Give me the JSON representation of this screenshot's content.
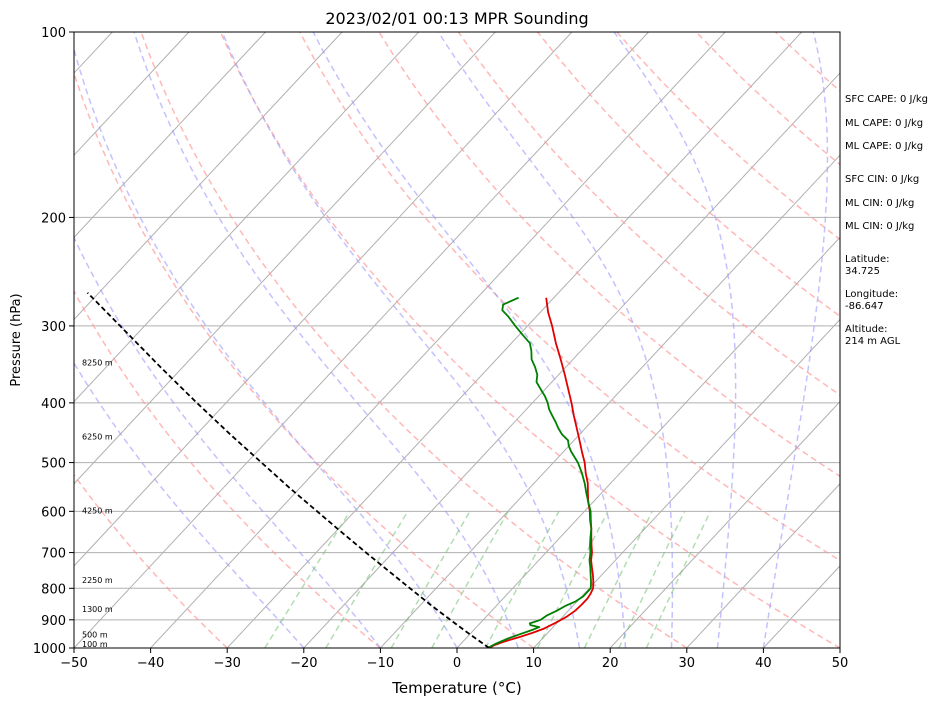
{
  "chart_data": {
    "type": "line",
    "title": "2023/02/01 00:13 MPR Sounding",
    "xlabel": "Temperature (°C)",
    "ylabel": "Pressure (hPa)",
    "xlim": [
      -50,
      50
    ],
    "ylim": [
      1000,
      100
    ],
    "y_scale": "log",
    "skew": "skew-T",
    "grid": true,
    "x_ticks": [
      -50,
      -40,
      -30,
      -20,
      -10,
      0,
      10,
      20,
      30,
      40,
      50
    ],
    "y_ticks": [
      100,
      200,
      300,
      400,
      500,
      600,
      700,
      800,
      900,
      1000
    ],
    "height_labels": [
      {
        "label": "100 m",
        "p": 988
      },
      {
        "label": "500 m",
        "p": 955
      },
      {
        "label": "1300 m",
        "p": 868
      },
      {
        "label": "2250 m",
        "p": 778
      },
      {
        "label": "4250 m",
        "p": 600
      },
      {
        "label": "6250 m",
        "p": 455
      },
      {
        "label": "8250 m",
        "p": 345
      }
    ],
    "series": [
      {
        "color": "#e00000",
        "points": [
          [
            1000,
            4.2
          ],
          [
            990,
            4.5
          ],
          [
            975,
            5.5
          ],
          [
            960,
            6.8
          ],
          [
            945,
            8.0
          ],
          [
            930,
            9.0
          ],
          [
            910,
            9.8
          ],
          [
            890,
            10.5
          ],
          [
            870,
            10.9
          ],
          [
            850,
            11.0
          ],
          [
            830,
            11.0
          ],
          [
            815,
            10.8
          ],
          [
            800,
            10.5
          ],
          [
            780,
            9.7
          ],
          [
            760,
            8.8
          ],
          [
            740,
            7.8
          ],
          [
            720,
            6.8
          ],
          [
            700,
            6.0
          ],
          [
            680,
            5.0
          ],
          [
            660,
            4.0
          ],
          [
            640,
            3.0
          ],
          [
            620,
            1.8
          ],
          [
            600,
            0.7
          ],
          [
            580,
            -0.6
          ],
          [
            560,
            -1.8
          ],
          [
            540,
            -3.0
          ],
          [
            520,
            -4.5
          ],
          [
            500,
            -5.9
          ],
          [
            480,
            -7.6
          ],
          [
            460,
            -9.3
          ],
          [
            440,
            -11.1
          ],
          [
            420,
            -13.0
          ],
          [
            400,
            -14.9
          ],
          [
            380,
            -17.0
          ],
          [
            360,
            -19.2
          ],
          [
            340,
            -21.6
          ],
          [
            320,
            -24.2
          ],
          [
            300,
            -26.8
          ],
          [
            285,
            -29.0
          ],
          [
            270,
            -31.0
          ]
        ]
      },
      {
        "color": "#008000",
        "points": [
          [
            1000,
            4.0
          ],
          [
            985,
            4.5
          ],
          [
            965,
            5.5
          ],
          [
            950,
            6.5
          ],
          [
            935,
            7.6
          ],
          [
            925,
            8.2
          ],
          [
            918,
            6.8
          ],
          [
            912,
            6.5
          ],
          [
            900,
            7.5
          ],
          [
            885,
            7.8
          ],
          [
            870,
            8.5
          ],
          [
            855,
            9.0
          ],
          [
            840,
            9.8
          ],
          [
            825,
            10.2
          ],
          [
            800,
            10.2
          ],
          [
            780,
            9.4
          ],
          [
            760,
            8.5
          ],
          [
            740,
            7.6
          ],
          [
            720,
            6.6
          ],
          [
            700,
            5.8
          ],
          [
            680,
            4.8
          ],
          [
            660,
            3.9
          ],
          [
            640,
            3.0
          ],
          [
            620,
            1.9
          ],
          [
            600,
            0.8
          ],
          [
            580,
            -0.6
          ],
          [
            560,
            -2.0
          ],
          [
            540,
            -3.4
          ],
          [
            520,
            -5.0
          ],
          [
            500,
            -6.8
          ],
          [
            480,
            -9.0
          ],
          [
            470,
            -10.0
          ],
          [
            460,
            -10.8
          ],
          [
            450,
            -12.3
          ],
          [
            440,
            -13.5
          ],
          [
            430,
            -14.6
          ],
          [
            420,
            -15.8
          ],
          [
            410,
            -17.0
          ],
          [
            400,
            -18.0
          ],
          [
            390,
            -19.2
          ],
          [
            380,
            -20.6
          ],
          [
            370,
            -22.0
          ],
          [
            360,
            -22.8
          ],
          [
            350,
            -24.0
          ],
          [
            340,
            -25.4
          ],
          [
            330,
            -26.4
          ],
          [
            320,
            -27.6
          ],
          [
            310,
            -29.6
          ],
          [
            300,
            -31.6
          ],
          [
            290,
            -33.6
          ],
          [
            283,
            -35.2
          ],
          [
            277,
            -35.8
          ],
          [
            270,
            -34.6
          ]
        ]
      },
      {
        "color": "#000000",
        "dashed": true,
        "points": [
          [
            1000,
            4.2
          ],
          [
            950,
            0.0
          ],
          [
            900,
            -4.3
          ],
          [
            850,
            -8.8
          ],
          [
            800,
            -13.4
          ],
          [
            750,
            -18.3
          ],
          [
            700,
            -23.5
          ],
          [
            650,
            -29.0
          ],
          [
            600,
            -34.9
          ],
          [
            550,
            -41.3
          ],
          [
            500,
            -48.1
          ],
          [
            450,
            -55.6
          ],
          [
            400,
            -63.8
          ],
          [
            350,
            -72.9
          ],
          [
            300,
            -83.2
          ],
          [
            265,
            -91.5
          ]
        ]
      }
    ],
    "annotations": [
      {
        "text": "SFC CAPE: 0 J/kg"
      },
      {
        "text": "ML CAPE: 0 J/kg"
      },
      {
        "text": "ML CAPE: 0 J/kg"
      },
      {
        "text": "SFC CIN: 0 J/kg"
      },
      {
        "text": "ML CIN: 0 J/kg"
      },
      {
        "text": "ML CIN: 0 J/kg"
      },
      {
        "text": "Latitude:\n34.725"
      },
      {
        "text": "Longitude:\n-86.647"
      },
      {
        "text": "Altitude:\n214 m AGL"
      }
    ]
  }
}
